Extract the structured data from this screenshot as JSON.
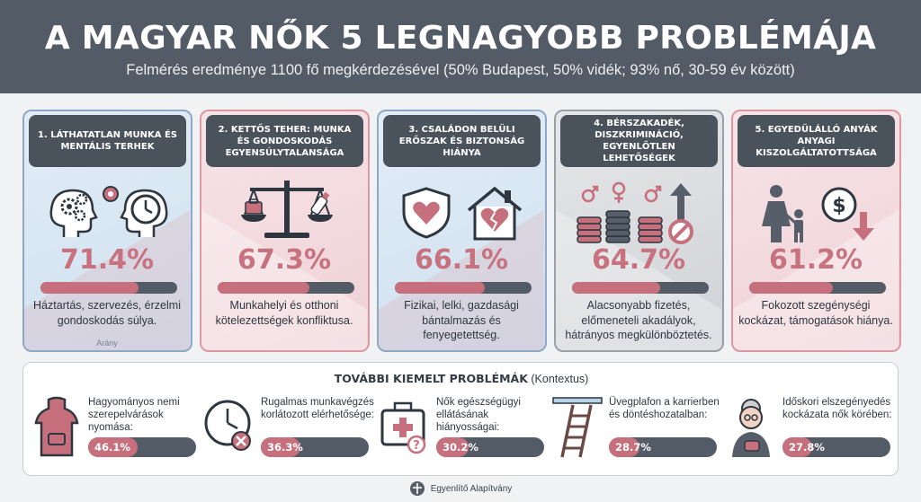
{
  "header": {
    "title": "A MAGYAR NŐK 5 LEGNAGYOBB PROBLÉMÁJA",
    "subtitle": "Felmérés eredménye 1100 fő megkérdezésével (50% Budapest, 50% vidék; 93% nő, 30-59 év között)"
  },
  "cards": [
    {
      "title": "1. LÁTHATATLAN MUNKA ÉS MENTÁLIS TERHEK",
      "percent": "71.4%",
      "value": 71.4,
      "description": "Háztartás, szervezés, érzelmi gondoskodás súlya.",
      "note": "Arány",
      "icons": [
        "head-gears-icon",
        "head-clock-icon"
      ]
    },
    {
      "title": "2. KETTŐS TEHER: MUNKA ÉS GONDOSKODÁS EGYENSÚLYTALANSÁGA",
      "percent": "67.3%",
      "value": 67.3,
      "description": "Munkahelyi és otthoni kötelezettségek konfliktusa.",
      "icons": [
        "scale-icon",
        "briefcase-icon",
        "baby-bottle-icon"
      ]
    },
    {
      "title": "3. CSALÁDON BELÜLI ERŐSZAK ÉS BIZTONSÁG HIÁNYA",
      "percent": "66.1%",
      "value": 66.1,
      "description": "Fizikai, lelki, gazdasági bántalmazás és fenyegetettség.",
      "icons": [
        "shield-heart-icon",
        "broken-heart-house-icon"
      ]
    },
    {
      "title": "4. BÉRSZAKADÉK, DISZKRIMINÁCIÓ, EGYENLŐTLEN LEHETŐSÉGEK",
      "percent": "64.7%",
      "value": 64.7,
      "description": "Alacsonyabb fizetés, előmeneteli akadályok, hátrányos megkülönböztetés.",
      "icons": [
        "coin-stacks-icon",
        "gender-symbols-icon",
        "blocked-arrow-icon"
      ]
    },
    {
      "title": "5. EGYEDÜLÁLLÓ ANYÁK ANYAGI KISZOLGÁLTATOTTSÁGA",
      "percent": "61.2%",
      "value": 61.2,
      "description": "Fokozott szegénységi kockázat, támogatások hiánya.",
      "icons": [
        "mother-child-icon",
        "dollar-down-icon"
      ]
    }
  ],
  "more": {
    "title_bold": "TOVÁBBI KIEMELT PROBLÉMÁK",
    "title_rest": " (Kontextus)",
    "items": [
      {
        "text": "Hagyományos nemi szerepelvárások nyomása:",
        "percent": "46.1%",
        "value": 46.1,
        "icon": "apron-icon"
      },
      {
        "text": "Rugalmas munkavégzés korlátozott elérhetősége:",
        "percent": "36.3%",
        "value": 36.3,
        "icon": "clock-blocked-icon"
      },
      {
        "text": "Nők egészségügyi ellátásának hiányosságai:",
        "percent": "30.2%",
        "value": 30.2,
        "icon": "medical-kit-icon"
      },
      {
        "text": "Üvegplafon a karrierben és döntéshozatalban:",
        "percent": "28.7%",
        "value": 28.7,
        "icon": "ladder-ceiling-icon"
      },
      {
        "text": "Időskori elszegényedés kockázata nők körében:",
        "percent": "27.8%",
        "value": 27.8,
        "icon": "elderly-woman-icon"
      }
    ]
  },
  "footer": {
    "org": "Egyenlítő Alapítvány"
  },
  "colors": {
    "header": "#535b66",
    "accent": "#c66f7d",
    "blue_card": "#cfe0ef",
    "pink_card": "#efd1d6",
    "gray_card": "#cfd2d6"
  }
}
